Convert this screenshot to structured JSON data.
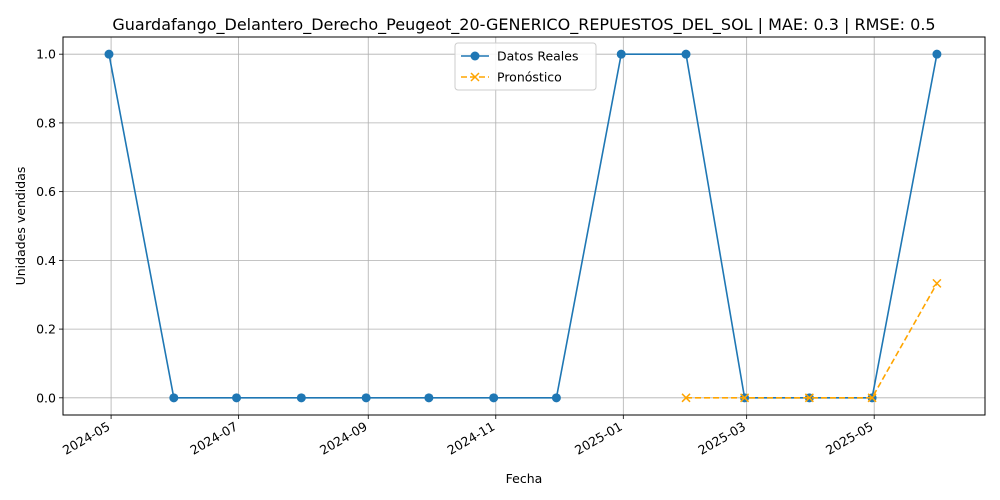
{
  "chart_data": {
    "type": "line",
    "title": "Guardafango_Delantero_Derecho_Peugeot_20-GENERICO_REPUESTOS_DEL_SOL | MAE: 0.3 | RMSE: 0.5",
    "xlabel": "Fecha",
    "ylabel": "Unidades vendidas",
    "x_axis": "date",
    "xlim": [
      "2024-04-08",
      "2025-06-23"
    ],
    "ylim": [
      -0.05,
      1.05
    ],
    "x_ticks": [
      "2024-05",
      "2024-07",
      "2024-09",
      "2024-11",
      "2025-01",
      "2025-03",
      "2025-05"
    ],
    "x_tick_dates": [
      "2024-05-01",
      "2024-07-01",
      "2024-09-01",
      "2024-11-01",
      "2025-01-01",
      "2025-03-01",
      "2025-05-01"
    ],
    "y_ticks": [
      "0.0",
      "0.2",
      "0.4",
      "0.6",
      "0.8",
      "1.0"
    ],
    "y_tick_values": [
      0.0,
      0.2,
      0.4,
      0.6,
      0.8,
      1.0
    ],
    "grid": true,
    "legend_position": "top-center",
    "series": [
      {
        "name": "Datos Reales",
        "color": "#1f77b4",
        "marker": "circle",
        "line_style": "solid",
        "x": [
          "2024-04-30",
          "2024-05-31",
          "2024-06-30",
          "2024-07-31",
          "2024-08-31",
          "2024-09-30",
          "2024-10-31",
          "2024-11-30",
          "2024-12-31",
          "2025-01-31",
          "2025-02-28",
          "2025-03-31",
          "2025-04-30",
          "2025-05-31"
        ],
        "values": [
          1,
          0,
          0,
          0,
          0,
          0,
          0,
          0,
          1,
          1,
          0,
          0,
          0,
          1
        ]
      },
      {
        "name": "Pronóstico",
        "color": "#ffa500",
        "marker": "x",
        "line_style": "dashed",
        "x": [
          "2025-01-31",
          "2025-02-28",
          "2025-03-31",
          "2025-04-30",
          "2025-05-31"
        ],
        "values": [
          0,
          0,
          0,
          0,
          0.333
        ]
      }
    ]
  }
}
